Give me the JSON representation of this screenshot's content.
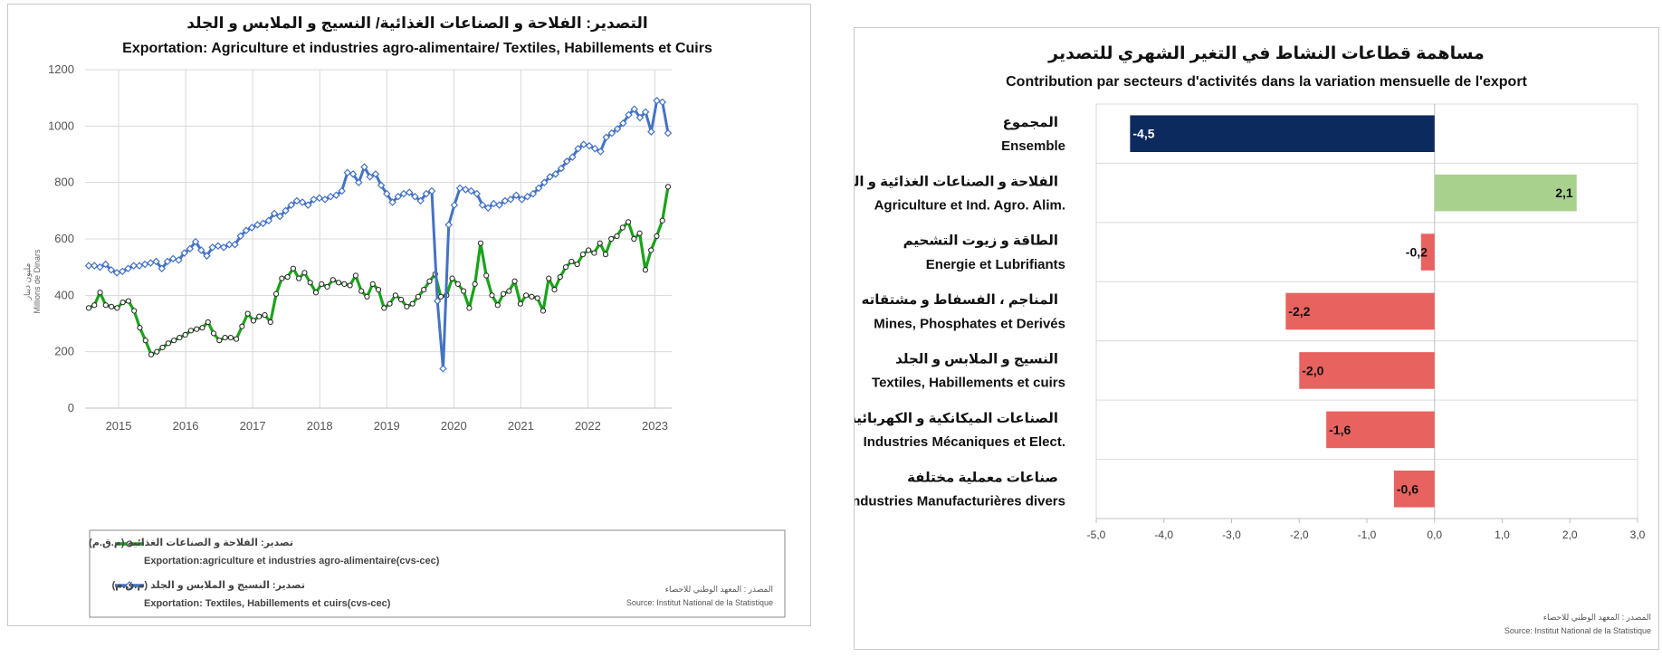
{
  "chart_data": [
    {
      "type": "line",
      "title_ar": "التصدير: الفلاحة و الصناعات الغذائية/ النسيج و الملابس و الجلد",
      "title_fr": "Exportation: Agriculture et industries agro-alimentaire/ Textiles, Habillements et Cuirs",
      "ylabel_ar": "مليون دينار",
      "ylabel_fr": "Millions de Dinars",
      "ylim": [
        0,
        1200
      ],
      "yticks": [
        0,
        200,
        400,
        600,
        800,
        1000,
        1200
      ],
      "xlabels": [
        "2015",
        "2016",
        "2017",
        "2018",
        "2019",
        "2020",
        "2021",
        "2022",
        "2023"
      ],
      "grid": true,
      "source_ar": "المصدر : المعهد الوطني للاحصاء",
      "source_fr": "Source: Institut National de la Statistique",
      "series": [
        {
          "name_ar": "تصدير: الفلاحة و الصناعات الغذائية  (م.ق.م)",
          "name_fr": "Exportation:agriculture et industries agro-alimentaire(cvs-cec)",
          "color": "#1aa31a",
          "values": [
            355,
            365,
            410,
            365,
            360,
            355,
            375,
            380,
            345,
            285,
            240,
            190,
            200,
            215,
            230,
            240,
            250,
            260,
            275,
            280,
            285,
            305,
            265,
            240,
            250,
            250,
            245,
            290,
            335,
            310,
            325,
            330,
            305,
            405,
            460,
            465,
            495,
            460,
            480,
            445,
            410,
            440,
            430,
            455,
            445,
            440,
            435,
            470,
            415,
            395,
            440,
            420,
            355,
            370,
            400,
            385,
            360,
            370,
            395,
            420,
            450,
            475,
            395,
            400,
            460,
            440,
            415,
            355,
            440,
            585,
            470,
            400,
            365,
            405,
            415,
            450,
            370,
            400,
            395,
            390,
            345,
            460,
            420,
            465,
            500,
            520,
            510,
            545,
            560,
            550,
            585,
            545,
            600,
            610,
            640,
            660,
            600,
            620,
            490,
            560,
            610,
            665,
            785
          ]
        },
        {
          "name_ar": "تصدير: النسيج و الملابس و الجلد  (م.ق.م)",
          "name_fr": "Exportation: Textiles, Habillements et cuirs(cvs-cec)",
          "color": "#4472c4",
          "values": [
            505,
            505,
            500,
            510,
            490,
            480,
            485,
            495,
            505,
            505,
            510,
            515,
            520,
            495,
            520,
            530,
            525,
            550,
            565,
            590,
            560,
            540,
            570,
            575,
            570,
            580,
            580,
            610,
            630,
            640,
            650,
            655,
            665,
            690,
            680,
            700,
            720,
            735,
            730,
            720,
            740,
            745,
            740,
            750,
            755,
            770,
            835,
            830,
            800,
            855,
            820,
            830,
            790,
            760,
            730,
            750,
            760,
            765,
            750,
            735,
            760,
            770,
            380,
            140,
            650,
            720,
            780,
            775,
            770,
            760,
            720,
            710,
            725,
            720,
            735,
            740,
            755,
            740,
            750,
            760,
            780,
            800,
            820,
            830,
            850,
            875,
            890,
            920,
            935,
            930,
            920,
            910,
            960,
            975,
            990,
            1010,
            1040,
            1060,
            1030,
            1050,
            980,
            1090,
            1085,
            975
          ]
        }
      ]
    },
    {
      "type": "bar",
      "orientation": "horizontal",
      "title_ar": "مساهمة قطاعات النشاط في التغير الشهري للتصدير",
      "title_fr": "Contribution par secteurs d'activités dans la variation mensuelle de l'export",
      "xlim": [
        -5.0,
        3.0
      ],
      "xticks": [
        "-5,0",
        "-4,0",
        "-3,0",
        "-2,0",
        "-1,0",
        "0,0",
        "1,0",
        "2,0",
        "3,0"
      ],
      "categories": [
        {
          "ar": "المجموع",
          "fr": "Ensemble",
          "value": -4.5,
          "label": "-4,5",
          "color": "#0d2a5e"
        },
        {
          "ar": "الفلاحة و الصناعات الغذائية و الفلاحية",
          "fr": "Agriculture et Ind. Agro. Alim.",
          "value": 2.1,
          "label": "2,1",
          "color": "#a9d18e"
        },
        {
          "ar": "الطاقة و زيوت التشحيم",
          "fr": "Energie et Lubrifiants",
          "value": -0.2,
          "label": "-0,2",
          "color": "#e8625f"
        },
        {
          "ar": "المناجم ، الفسفاط و مشتقاته",
          "fr": "Mines, Phosphates et Derivés",
          "value": -2.2,
          "label": "-2,2",
          "color": "#e8625f"
        },
        {
          "ar": "النسيج و الملابس و الجلد",
          "fr": "Textiles, Habillements et cuirs",
          "value": -2.0,
          "label": "-2,0",
          "color": "#e8625f"
        },
        {
          "ar": "الصناعات الميكانكية و الكهربائية",
          "fr": "Industries Mécaniques et Elect.",
          "value": -1.6,
          "label": "-1,6",
          "color": "#e8625f"
        },
        {
          "ar": "صناعات معملية مختلفة",
          "fr": "Industries Manufacturières divers",
          "value": -0.6,
          "label": "-0,6",
          "color": "#e8625f"
        }
      ],
      "source_ar": "المصدر : المعهد الوطني للاحصاء",
      "source_fr": "Source: Institut National de la Statistique"
    }
  ]
}
